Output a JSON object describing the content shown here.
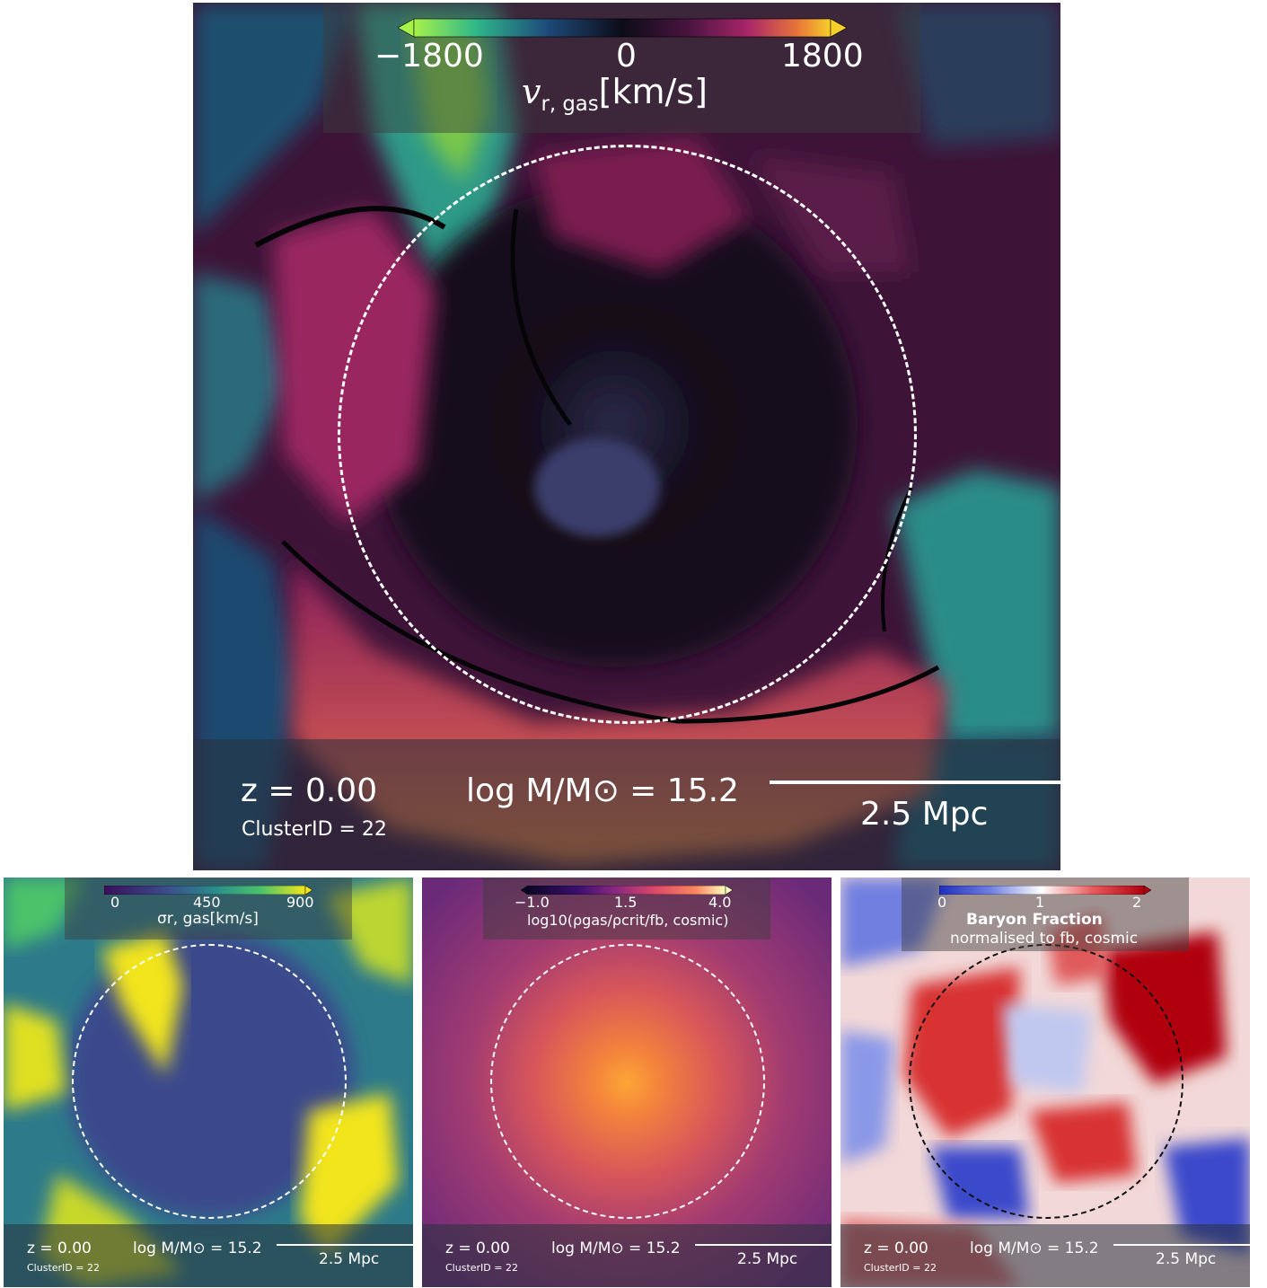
{
  "main": {
    "colorbar": {
      "min_label": "−1800",
      "mid_label": "0",
      "max_label": "1800",
      "quantity": "v",
      "quantity_sub": "r, gas",
      "unit": "[km/s]",
      "colors": [
        "#a6f24a",
        "#2fb68a",
        "#1d4a7a",
        "#0c0c18",
        "#4a1440",
        "#a8256a",
        "#e8743a",
        "#f7d02a"
      ]
    },
    "redshift": "z = 0.00",
    "cluster_id": "ClusterID = 22",
    "mass_label": "log M/M⊙ = 15.2",
    "scale_label": "2.5 Mpc"
  },
  "panels": [
    {
      "colorbar": {
        "min_label": "0",
        "mid_label": "450",
        "max_label": "900",
        "label": "σr, gas[km/s]",
        "colors": [
          "#3a0f5a",
          "#3b4a8c",
          "#2a8c8c",
          "#4bc36a",
          "#f2e51c"
        ]
      },
      "redshift": "z = 0.00",
      "cluster_id": "ClusterID = 22",
      "mass_label": "log M/M⊙ = 15.2",
      "scale_label": "2.5 Mpc"
    },
    {
      "colorbar": {
        "min_label": "−1.0",
        "mid_label": "1.5",
        "max_label": "4.0",
        "label": "log10(ρgas/ρcrit/fb, cosmic)",
        "colors": [
          "#0c0726",
          "#3b0f6f",
          "#8c2981",
          "#dd4a68",
          "#fb8761",
          "#fcfdbf"
        ]
      },
      "redshift": "z = 0.00",
      "cluster_id": "ClusterID = 22",
      "mass_label": "log M/M⊙ = 15.2",
      "scale_label": "2.5 Mpc"
    },
    {
      "colorbar": {
        "min_label": "0",
        "mid_label": "1",
        "max_label": "2",
        "title": "Baryon Fraction",
        "subtitle": "normalised to fb, cosmic",
        "colors": [
          "#1f2fbf",
          "#6f7fe0",
          "#ffffff",
          "#e85a5a",
          "#b00010"
        ]
      },
      "redshift": "z = 0.00",
      "cluster_id": "ClusterID = 22",
      "mass_label": "log M/M⊙ = 15.2",
      "scale_label": "2.5 Mpc"
    }
  ]
}
